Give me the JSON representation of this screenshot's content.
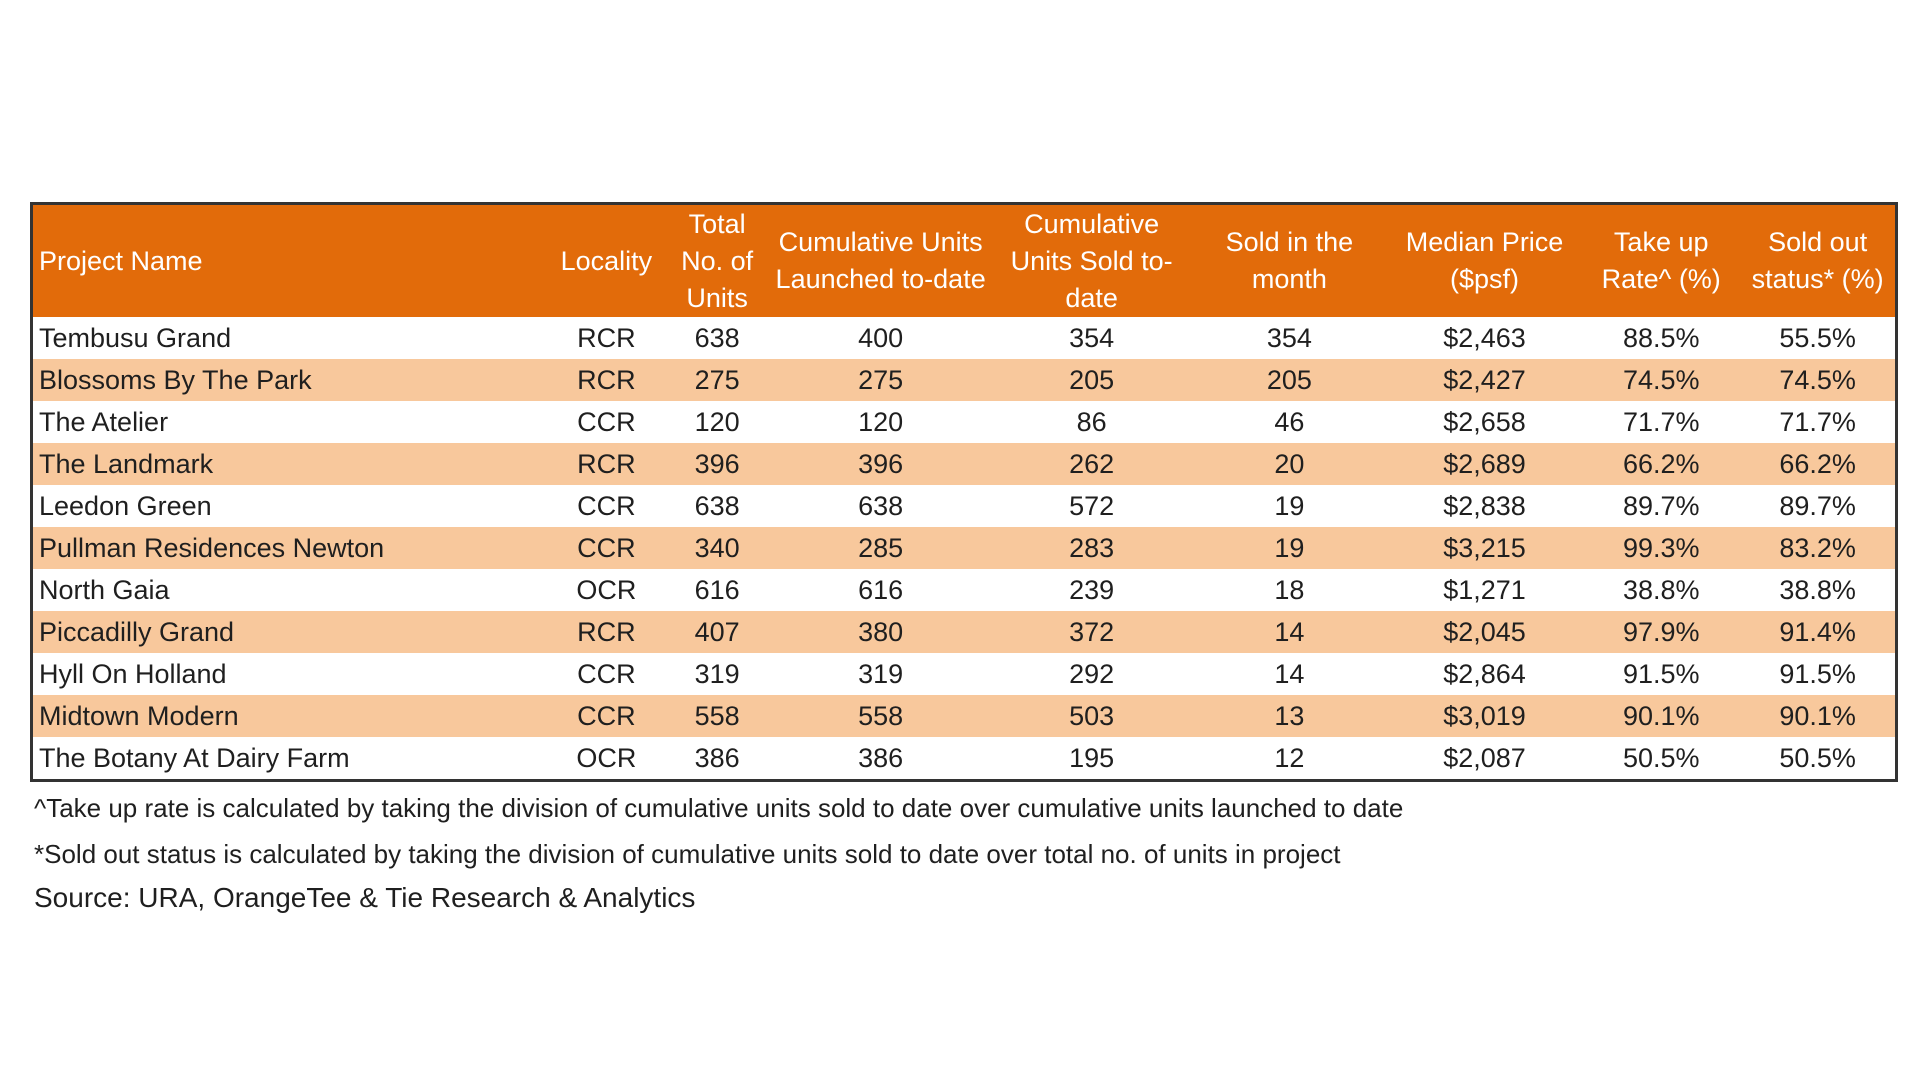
{
  "chart_data": {
    "type": "table",
    "columns": [
      "Project Name",
      "Locality",
      "Total No. of Units",
      "Cumulative Units Launched to-date",
      "Cumulative Units Sold to-date",
      "Sold in the month",
      "Median Price ($psf)",
      "Take up Rate^ (%)",
      "Sold out status* (%)"
    ],
    "rows": [
      [
        "Tembusu Grand",
        "RCR",
        "638",
        "400",
        "354",
        "354",
        "$2,463",
        "88.5%",
        "55.5%"
      ],
      [
        "Blossoms By The Park",
        "RCR",
        "275",
        "275",
        "205",
        "205",
        "$2,427",
        "74.5%",
        "74.5%"
      ],
      [
        "The Atelier",
        "CCR",
        "120",
        "120",
        "86",
        "46",
        "$2,658",
        "71.7%",
        "71.7%"
      ],
      [
        "The Landmark",
        "RCR",
        "396",
        "396",
        "262",
        "20",
        "$2,689",
        "66.2%",
        "66.2%"
      ],
      [
        "Leedon Green",
        "CCR",
        "638",
        "638",
        "572",
        "19",
        "$2,838",
        "89.7%",
        "89.7%"
      ],
      [
        "Pullman Residences Newton",
        "CCR",
        "340",
        "285",
        "283",
        "19",
        "$3,215",
        "99.3%",
        "83.2%"
      ],
      [
        "North Gaia",
        "OCR",
        "616",
        "616",
        "239",
        "18",
        "$1,271",
        "38.8%",
        "38.8%"
      ],
      [
        "Piccadilly Grand",
        "RCR",
        "407",
        "380",
        "372",
        "14",
        "$2,045",
        "97.9%",
        "91.4%"
      ],
      [
        "Hyll On Holland",
        "CCR",
        "319",
        "319",
        "292",
        "14",
        "$2,864",
        "91.5%",
        "91.5%"
      ],
      [
        "Midtown Modern",
        "CCR",
        "558",
        "558",
        "503",
        "13",
        "$3,019",
        "90.1%",
        "90.1%"
      ],
      [
        "The Botany At Dairy Farm",
        "OCR",
        "386",
        "386",
        "195",
        "12",
        "$2,087",
        "50.5%",
        "50.5%"
      ]
    ],
    "footnotes": [
      "^Take up rate is calculated by taking the division of cumulative units sold to date over cumulative units launched to date",
      "*Sold out status is calculated by taking the division of cumulative units sold to date over total no. of units in project"
    ],
    "source": "Source: URA, OrangeTee & Tie Research & Analytics"
  },
  "colors": {
    "header_bg": "#e26b0a",
    "header_text": "#ffffff",
    "band_row": "#f8c89c",
    "plain_row": "#ffffff",
    "border": "#333333"
  }
}
